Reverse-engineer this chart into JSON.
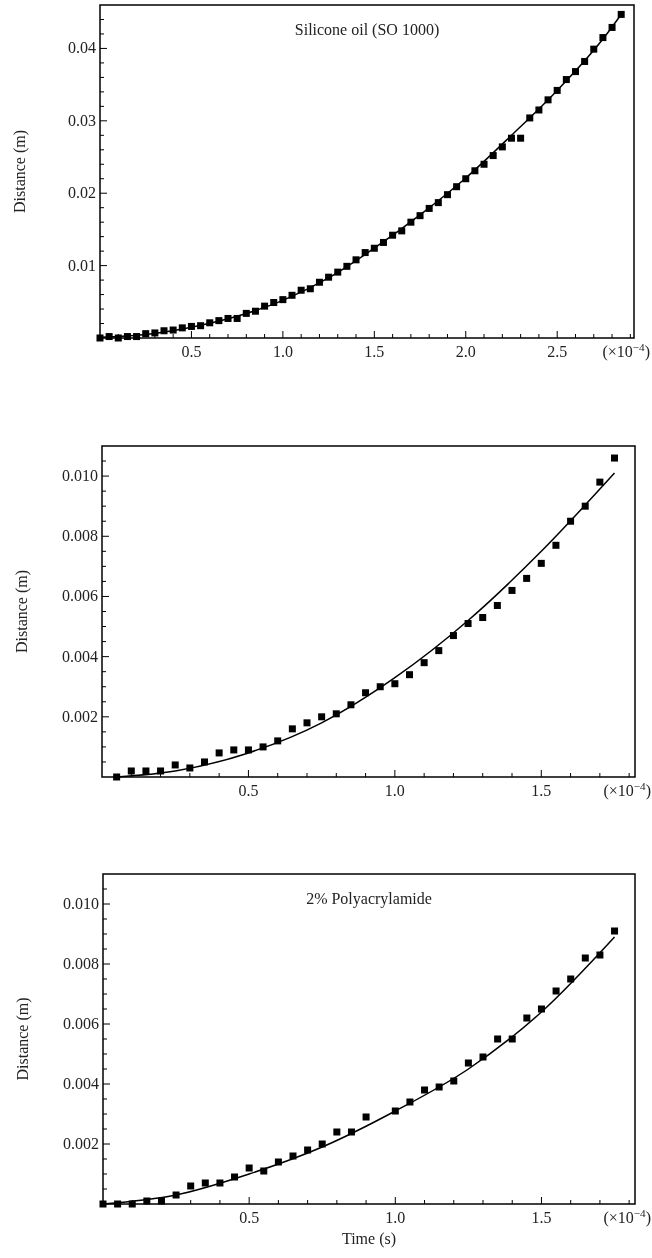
{
  "chart_data": [
    {
      "type": "scatter",
      "title": "Silicone oil (SO 1000)",
      "ylabel": "Distance (m)",
      "annotations": [
        "(×10$^{−4}$)"
      ],
      "xlim": [
        0,
        2.92
      ],
      "ylim": [
        0,
        0.046
      ],
      "xticks": [
        {
          "value": 0.1,
          "label": null
        },
        {
          "value": 0.2,
          "label": null
        },
        {
          "value": 0.3,
          "label": null
        },
        {
          "value": 0.4,
          "label": null
        },
        0.5,
        {
          "value": 0.6,
          "label": null
        },
        {
          "value": 0.7,
          "label": null
        },
        {
          "value": 0.8,
          "label": null
        },
        {
          "value": 0.9,
          "label": null
        },
        {
          "value": 1,
          "label": "1.0"
        },
        {
          "value": 1.1,
          "label": null
        },
        {
          "value": 1.2,
          "label": null
        },
        {
          "value": 1.3,
          "label": null
        },
        {
          "value": 1.4,
          "label": null
        },
        1.5,
        {
          "value": 1.6,
          "label": null
        },
        {
          "value": 1.7,
          "label": null
        },
        {
          "value": 1.8,
          "label": null
        },
        {
          "value": 1.9,
          "label": null
        },
        {
          "value": 2,
          "label": "2.0"
        },
        {
          "value": 2.1,
          "label": null
        },
        {
          "value": 2.2,
          "label": null
        },
        {
          "value": 2.3,
          "label": null
        },
        {
          "value": 2.4,
          "label": null
        },
        2.5,
        {
          "value": 2.6,
          "label": null
        },
        {
          "value": 2.7,
          "label": null
        },
        {
          "value": 2.8,
          "label": null
        },
        {
          "value": 2.9,
          "label": null
        }
      ],
      "yticks": [
        {
          "value": 0.002,
          "label": null
        },
        {
          "value": 0.004,
          "label": null
        },
        {
          "value": 0.006,
          "label": null
        },
        {
          "value": 0.008,
          "label": null
        },
        0.01,
        {
          "value": 0.012,
          "label": null
        },
        {
          "value": 0.014,
          "label": null
        },
        {
          "value": 0.016,
          "label": null
        },
        {
          "value": 0.018,
          "label": null
        },
        0.02,
        {
          "value": 0.022,
          "label": null
        },
        {
          "value": 0.024,
          "label": null
        },
        {
          "value": 0.026,
          "label": null
        },
        {
          "value": 0.028,
          "label": null
        },
        0.03,
        {
          "value": 0.032,
          "label": null
        },
        {
          "value": 0.034,
          "label": null
        },
        {
          "value": 0.036,
          "label": null
        },
        {
          "value": 0.038,
          "label": null
        },
        0.04,
        {
          "value": 0.042,
          "label": null
        },
        {
          "value": 0.044,
          "label": null
        }
      ],
      "series": [
        {
          "marker": "square",
          "color": "#000000",
          "x": [
            0,
            0.05,
            0.1,
            0.15,
            0.2,
            0.25,
            0.3,
            0.35,
            0.4,
            0.45,
            0.5,
            0.55,
            0.6,
            0.65,
            0.7,
            0.75,
            0.8,
            0.85,
            0.9,
            0.95,
            1,
            1.05,
            1.1,
            1.15,
            1.2,
            1.25,
            1.3,
            1.35,
            1.4,
            1.45,
            1.5,
            1.55,
            1.6,
            1.65,
            1.7,
            1.75,
            1.8,
            1.85,
            1.9,
            1.95,
            2,
            2.05,
            2.1,
            2.15,
            2.2,
            2.25,
            2.3,
            2.35,
            2.4,
            2.45,
            2.5,
            2.55,
            2.6,
            2.65,
            2.7,
            2.75,
            2.8,
            2.85
          ],
          "values": [
            0,
            0.0002,
            0,
            0.0002,
            0.0002,
            0.0006,
            0.0007,
            0.001,
            0.0011,
            0.0014,
            0.0016,
            0.0017,
            0.0021,
            0.0024,
            0.0027,
            0.0027,
            0.0034,
            0.0037,
            0.0044,
            0.0049,
            0.0053,
            0.0059,
            0.0066,
            0.0068,
            0.0077,
            0.0084,
            0.0091,
            0.0099,
            0.0108,
            0.0118,
            0.0124,
            0.0132,
            0.0142,
            0.0148,
            0.016,
            0.0169,
            0.0179,
            0.0187,
            0.0198,
            0.0209,
            0.022,
            0.0231,
            0.024,
            0.0252,
            0.0264,
            0.0276,
            0.0276,
            0.0304,
            0.0315,
            0.0329,
            0.0342,
            0.0357,
            0.0368,
            0.0382,
            0.0399,
            0.0415,
            0.0429,
            0.0447
          ]
        },
        {
          "type": "line",
          "marker": "none",
          "color": "#000000",
          "x": [
            0,
            0.25,
            0.5,
            0.75,
            1,
            1.25,
            1.5,
            1.75,
            2,
            2.25,
            2.5,
            2.75,
            2.85
          ],
          "values": [
            0.0001,
            0.0005,
            0.0015,
            0.003,
            0.0052,
            0.0083,
            0.0124,
            0.017,
            0.0221,
            0.028,
            0.0342,
            0.0413,
            0.0447
          ]
        }
      ]
    },
    {
      "type": "scatter",
      "ylabel": "Distance (m)",
      "annotations": [
        "(×10$^{−4}$)"
      ],
      "xlim": [
        0,
        1.82
      ],
      "ylim": [
        0,
        0.011
      ],
      "xticks": [
        {
          "value": 0.1,
          "label": null
        },
        {
          "value": 0.2,
          "label": null
        },
        {
          "value": 0.3,
          "label": null
        },
        {
          "value": 0.4,
          "label": null
        },
        0.5,
        {
          "value": 0.6,
          "label": null
        },
        {
          "value": 0.7,
          "label": null
        },
        {
          "value": 0.8,
          "label": null
        },
        {
          "value": 0.9,
          "label": null
        },
        {
          "value": 1,
          "label": "1.0"
        },
        {
          "value": 1.1,
          "label": null
        },
        {
          "value": 1.2,
          "label": null
        },
        {
          "value": 1.3,
          "label": null
        },
        {
          "value": 1.4,
          "label": null
        },
        1.5,
        {
          "value": 1.6,
          "label": null
        },
        {
          "value": 1.7,
          "label": null
        },
        {
          "value": 1.8,
          "label": null
        }
      ],
      "yticks": [
        {
          "value": 0.0005,
          "label": null
        },
        {
          "value": 0.001,
          "label": null
        },
        {
          "value": 0.0015,
          "label": null
        },
        0.002,
        {
          "value": 0.0025,
          "label": null
        },
        {
          "value": 0.003,
          "label": null
        },
        {
          "value": 0.0035,
          "label": null
        },
        0.004,
        {
          "value": 0.0045,
          "label": null
        },
        {
          "value": 0.005,
          "label": null
        },
        {
          "value": 0.0055,
          "label": null
        },
        0.006,
        {
          "value": 0.0065,
          "label": null
        },
        {
          "value": 0.007,
          "label": null
        },
        {
          "value": 0.0075,
          "label": null
        },
        0.008,
        {
          "value": 0.0085,
          "label": null
        },
        {
          "value": 0.009,
          "label": null
        },
        {
          "value": 0.0095,
          "label": null
        },
        {
          "value": 0.01,
          "label": "0.010"
        },
        {
          "value": 0.0105,
          "label": null
        }
      ],
      "series": [
        {
          "marker": "square",
          "color": "#000000",
          "x": [
            0.05,
            0.1,
            0.15,
            0.2,
            0.25,
            0.3,
            0.35,
            0.4,
            0.45,
            0.5,
            0.55,
            0.6,
            0.65,
            0.7,
            0.75,
            0.8,
            0.85,
            0.9,
            0.95,
            1,
            1.05,
            1.1,
            1.15,
            1.2,
            1.25,
            1.3,
            1.35,
            1.4,
            1.45,
            1.5,
            1.55,
            1.6,
            1.65,
            1.7,
            1.75
          ],
          "values": [
            0,
            0.0002,
            0.0002,
            0.0002,
            0.0004,
            0.0003,
            0.0005,
            0.0008,
            0.0009,
            0.0009,
            0.001,
            0.0012,
            0.0016,
            0.0018,
            0.002,
            0.0021,
            0.0024,
            0.0028,
            0.003,
            0.0031,
            0.0034,
            0.0038,
            0.0042,
            0.0047,
            0.0051,
            0.0053,
            0.0057,
            0.0062,
            0.0066,
            0.0071,
            0.0077,
            0.0085,
            0.009,
            0.0098,
            0.0106
          ]
        },
        {
          "type": "line",
          "marker": "none",
          "color": "#000000",
          "x": [
            0.05,
            0.25,
            0.5,
            0.75,
            1,
            1.25,
            1.5,
            1.75
          ],
          "values": [
            0,
            0.0002,
            0.0008,
            0.0018,
            0.0033,
            0.0052,
            0.0075,
            0.0101
          ]
        }
      ]
    },
    {
      "type": "scatter",
      "title": "2% Polyacrylamide",
      "ylabel": "Distance (m)",
      "xlabel": "Time (s)",
      "annotations": [
        "(×10$^{−4}$)"
      ],
      "xlim": [
        0,
        1.82
      ],
      "ylim": [
        0,
        0.011
      ],
      "xticks": [
        {
          "value": 0.1,
          "label": null
        },
        {
          "value": 0.2,
          "label": null
        },
        {
          "value": 0.3,
          "label": null
        },
        {
          "value": 0.4,
          "label": null
        },
        0.5,
        {
          "value": 0.6,
          "label": null
        },
        {
          "value": 0.7,
          "label": null
        },
        {
          "value": 0.8,
          "label": null
        },
        {
          "value": 0.9,
          "label": null
        },
        {
          "value": 1,
          "label": "1.0"
        },
        {
          "value": 1.1,
          "label": null
        },
        {
          "value": 1.2,
          "label": null
        },
        {
          "value": 1.3,
          "label": null
        },
        {
          "value": 1.4,
          "label": null
        },
        1.5,
        {
          "value": 1.6,
          "label": null
        },
        {
          "value": 1.7,
          "label": null
        },
        {
          "value": 1.8,
          "label": null
        }
      ],
      "yticks": [
        {
          "value": 0.0005,
          "label": null
        },
        {
          "value": 0.001,
          "label": null
        },
        {
          "value": 0.0015,
          "label": null
        },
        0.002,
        {
          "value": 0.0025,
          "label": null
        },
        {
          "value": 0.003,
          "label": null
        },
        {
          "value": 0.0035,
          "label": null
        },
        0.004,
        {
          "value": 0.0045,
          "label": null
        },
        {
          "value": 0.005,
          "label": null
        },
        {
          "value": 0.0055,
          "label": null
        },
        0.006,
        {
          "value": 0.0065,
          "label": null
        },
        {
          "value": 0.007,
          "label": null
        },
        {
          "value": 0.0075,
          "label": null
        },
        0.008,
        {
          "value": 0.0085,
          "label": null
        },
        {
          "value": 0.009,
          "label": null
        },
        {
          "value": 0.0095,
          "label": null
        },
        {
          "value": 0.01,
          "label": "0.010"
        },
        {
          "value": 0.0105,
          "label": null
        }
      ],
      "series": [
        {
          "marker": "square",
          "color": "#000000",
          "x": [
            0,
            0.05,
            0.1,
            0.15,
            0.2,
            0.25,
            0.3,
            0.35,
            0.4,
            0.45,
            0.5,
            0.55,
            0.6,
            0.65,
            0.7,
            0.75,
            0.8,
            0.85,
            0.9,
            1,
            1.05,
            1.1,
            1.15,
            1.2,
            1.25,
            1.3,
            1.35,
            1.4,
            1.45,
            1.5,
            1.55,
            1.6,
            1.65,
            1.7,
            1.75
          ],
          "values": [
            0,
            0,
            0,
            0.0001,
            0.0001,
            0.0003,
            0.0006,
            0.0007,
            0.0007,
            0.0009,
            0.0012,
            0.0011,
            0.0014,
            0.0016,
            0.0018,
            0.002,
            0.0024,
            0.0024,
            0.0029,
            0.0031,
            0.0034,
            0.0038,
            0.0039,
            0.0041,
            0.0047,
            0.0049,
            0.0055,
            0.0055,
            0.0062,
            0.0065,
            0.0071,
            0.0075,
            0.0082,
            0.0083,
            0.0091
          ]
        },
        {
          "type": "line",
          "marker": "none",
          "color": "#000000",
          "x": [
            0,
            0.25,
            0.5,
            0.75,
            1,
            1.25,
            1.5,
            1.75
          ],
          "values": [
            0,
            0.0003,
            0.001,
            0.0019,
            0.0031,
            0.0045,
            0.0064,
            0.0089
          ]
        }
      ]
    }
  ]
}
